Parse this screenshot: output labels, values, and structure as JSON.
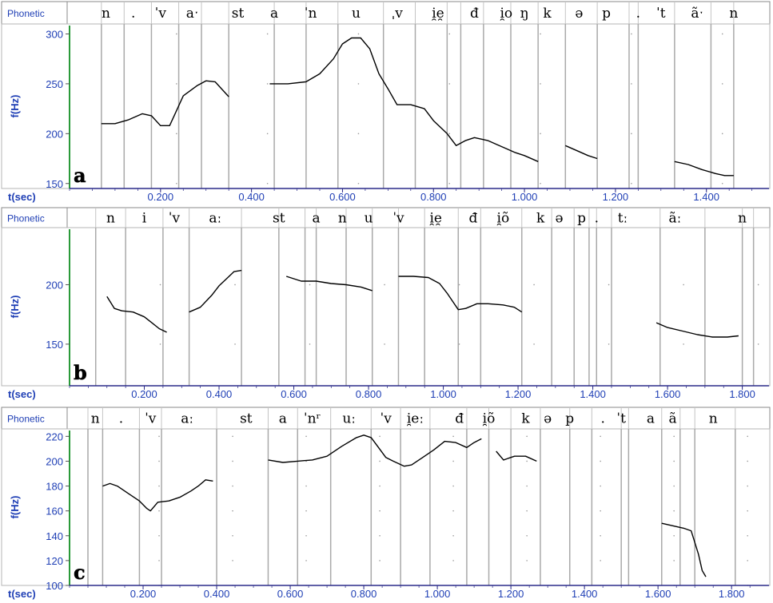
{
  "row_label": "Phonetic",
  "y_axis_label": "f(Hz)",
  "x_axis_label": "t(sec)",
  "colors": {
    "label_blue": "#1f3fb5",
    "axis_green": "#2a9a3a",
    "boundary_gray": "#a9a9a9",
    "curve": "#000000",
    "header_bg": "#ffffff"
  },
  "chart_data": [
    {
      "type": "line",
      "panel_letter": "a",
      "ylim": [
        145,
        310
      ],
      "yticks": [
        150,
        200,
        250,
        300
      ],
      "xlim": [
        0.0,
        1.52
      ],
      "xticks": [
        0.2,
        0.4,
        0.6,
        0.8,
        1.0,
        1.2,
        1.4
      ],
      "xtick_labels": [
        "0.200",
        "0.400",
        "0.600",
        "0.800",
        "1.000",
        "1.200",
        "1.400"
      ],
      "boundaries": [
        0.07,
        0.12,
        0.18,
        0.24,
        0.29,
        0.35,
        0.45,
        0.52,
        0.59,
        0.69,
        0.76,
        0.83,
        0.86,
        0.91,
        0.97,
        1.03,
        1.09,
        1.16,
        1.23,
        1.25,
        1.33,
        1.41,
        1.46
      ],
      "phones": [
        {
          "t": 0.08,
          "label": "n"
        },
        {
          "t": 0.14,
          "label": "."
        },
        {
          "t": 0.2,
          "label": "ˈv"
        },
        {
          "t": 0.27,
          "label": "aˑ"
        },
        {
          "t": 0.37,
          "label": "st"
        },
        {
          "t": 0.45,
          "label": "a"
        },
        {
          "t": 0.53,
          "label": "ˈn"
        },
        {
          "t": 0.63,
          "label": "u"
        },
        {
          "t": 0.72,
          "label": "ˌv"
        },
        {
          "t": 0.81,
          "label": "i̯e̯"
        },
        {
          "t": 0.89,
          "label": "đ"
        },
        {
          "t": 0.96,
          "label": "i̯o"
        },
        {
          "t": 1.0,
          "label": "ŋ"
        },
        {
          "t": 1.05,
          "label": "k"
        },
        {
          "t": 1.12,
          "label": "ə"
        },
        {
          "t": 1.18,
          "label": "p"
        },
        {
          "t": 1.25,
          "label": "."
        },
        {
          "t": 1.3,
          "label": "ˈt"
        },
        {
          "t": 1.38,
          "label": "ãˑ"
        },
        {
          "t": 1.46,
          "label": "n"
        }
      ],
      "series": [
        {
          "x": [
            0.07,
            0.1,
            0.13,
            0.16,
            0.18,
            0.2,
            0.22,
            0.23,
            0.25,
            0.28,
            0.3,
            0.32,
            0.35
          ],
          "y": [
            210,
            210,
            214,
            220,
            218,
            208,
            208,
            218,
            238,
            248,
            253,
            252,
            237
          ]
        },
        {
          "x": [
            0.44,
            0.48,
            0.52,
            0.55,
            0.58,
            0.6,
            0.62,
            0.64,
            0.66,
            0.68,
            0.7,
            0.72,
            0.75,
            0.78,
            0.8,
            0.83,
            0.85,
            0.87,
            0.89,
            0.92,
            0.95,
            0.98,
            1.0,
            1.03
          ],
          "y": [
            250,
            250,
            252,
            260,
            275,
            290,
            296,
            296,
            285,
            260,
            245,
            229,
            229,
            225,
            213,
            200,
            188,
            193,
            196,
            193,
            187,
            181,
            178,
            172
          ]
        },
        {
          "x": [
            1.09,
            1.12,
            1.14,
            1.16
          ],
          "y": [
            188,
            182,
            178,
            175
          ]
        },
        {
          "x": [
            1.33,
            1.36,
            1.39,
            1.42,
            1.44,
            1.46
          ],
          "y": [
            172,
            169,
            164,
            160,
            158,
            158
          ]
        }
      ]
    },
    {
      "type": "line",
      "panel_letter": "b",
      "ylim": [
        115,
        248
      ],
      "yticks": [
        150,
        200
      ],
      "xlim": [
        0.0,
        1.85
      ],
      "xticks": [
        0.2,
        0.4,
        0.6,
        0.8,
        1.0,
        1.2,
        1.4,
        1.6,
        1.8
      ],
      "xtick_labels": [
        "0.200",
        "0.400",
        "0.600",
        "0.800",
        "1.000",
        "1.200",
        "1.400",
        "1.600",
        "1.800"
      ],
      "boundaries": [
        0.07,
        0.15,
        0.25,
        0.32,
        0.46,
        0.56,
        0.63,
        0.66,
        0.74,
        0.81,
        0.88,
        0.95,
        1.04,
        1.1,
        1.21,
        1.29,
        1.35,
        1.39,
        1.41,
        1.45,
        1.58,
        1.7,
        1.8,
        1.83
      ],
      "phones": [
        {
          "t": 0.11,
          "label": "n"
        },
        {
          "t": 0.2,
          "label": "i"
        },
        {
          "t": 0.28,
          "label": "ˈv"
        },
        {
          "t": 0.39,
          "label": "aː"
        },
        {
          "t": 0.56,
          "label": "st"
        },
        {
          "t": 0.66,
          "label": "a"
        },
        {
          "t": 0.73,
          "label": "n"
        },
        {
          "t": 0.8,
          "label": "u"
        },
        {
          "t": 0.88,
          "label": "ˈv"
        },
        {
          "t": 0.98,
          "label": "i̯e̯"
        },
        {
          "t": 1.08,
          "label": "đ"
        },
        {
          "t": 1.16,
          "label": "i̯õ"
        },
        {
          "t": 1.26,
          "label": "k"
        },
        {
          "t": 1.31,
          "label": "ə"
        },
        {
          "t": 1.37,
          "label": "p"
        },
        {
          "t": 1.41,
          "label": "."
        },
        {
          "t": 1.48,
          "label": "tː"
        },
        {
          "t": 1.62,
          "label": "ãː"
        },
        {
          "t": 1.8,
          "label": "n"
        }
      ],
      "series": [
        {
          "x": [
            0.1,
            0.12,
            0.14,
            0.17,
            0.2,
            0.22,
            0.24,
            0.26
          ],
          "y": [
            190,
            180,
            178,
            177,
            173,
            168,
            163,
            160
          ]
        },
        {
          "x": [
            0.32,
            0.35,
            0.38,
            0.4,
            0.42,
            0.44,
            0.46
          ],
          "y": [
            177,
            181,
            191,
            199,
            205,
            211,
            212
          ]
        },
        {
          "x": [
            0.58,
            0.62,
            0.66,
            0.7,
            0.74,
            0.78,
            0.81
          ],
          "y": [
            207,
            203,
            203,
            201,
            200,
            198,
            195
          ]
        },
        {
          "x": [
            0.88,
            0.92,
            0.96,
            0.99,
            1.01,
            1.04,
            1.06,
            1.09,
            1.12,
            1.16,
            1.19,
            1.21
          ],
          "y": [
            207,
            207,
            206,
            201,
            193,
            179,
            180,
            184,
            184,
            183,
            181,
            177
          ]
        },
        {
          "x": [
            1.57,
            1.6,
            1.64,
            1.68,
            1.72,
            1.76,
            1.79
          ],
          "y": [
            168,
            164,
            161,
            158,
            156,
            156,
            157
          ]
        }
      ]
    },
    {
      "type": "line",
      "panel_letter": "c",
      "ylim": [
        100,
        226
      ],
      "yticks": [
        100,
        120,
        140,
        160,
        180,
        200,
        220
      ],
      "xlim": [
        0.0,
        1.88
      ],
      "xticks": [
        0.2,
        0.4,
        0.6,
        0.8,
        1.0,
        1.2,
        1.4,
        1.6,
        1.8
      ],
      "xtick_labels": [
        "0.200",
        "0.400",
        "0.600",
        "0.800",
        "1.000",
        "1.200",
        "1.400",
        "1.600",
        "1.800"
      ],
      "boundaries": [
        0.05,
        0.09,
        0.19,
        0.25,
        0.4,
        0.54,
        0.62,
        0.71,
        0.82,
        0.9,
        0.98,
        1.08,
        1.14,
        1.2,
        1.28,
        1.36,
        1.42,
        1.5,
        1.52,
        1.61,
        1.66,
        1.7,
        1.81
      ],
      "phones": [
        {
          "t": 0.07,
          "label": "n"
        },
        {
          "t": 0.14,
          "label": "."
        },
        {
          "t": 0.22,
          "label": "ˈv"
        },
        {
          "t": 0.32,
          "label": "aː"
        },
        {
          "t": 0.48,
          "label": "st"
        },
        {
          "t": 0.58,
          "label": "a"
        },
        {
          "t": 0.66,
          "label": "ˈnʳ"
        },
        {
          "t": 0.76,
          "label": "uː"
        },
        {
          "t": 0.86,
          "label": "ˈv"
        },
        {
          "t": 0.94,
          "label": "i̯eː"
        },
        {
          "t": 1.06,
          "label": "đ"
        },
        {
          "t": 1.14,
          "label": "i̯õ"
        },
        {
          "t": 1.24,
          "label": "k"
        },
        {
          "t": 1.3,
          "label": "ə"
        },
        {
          "t": 1.36,
          "label": "p"
        },
        {
          "t": 1.45,
          "label": "."
        },
        {
          "t": 1.5,
          "label": "ˈt"
        },
        {
          "t": 1.58,
          "label": "a"
        },
        {
          "t": 1.64,
          "label": "ã"
        },
        {
          "t": 1.75,
          "label": "n"
        }
      ],
      "series": [
        {
          "x": [
            0.09,
            0.11,
            0.13,
            0.16,
            0.19,
            0.21,
            0.22,
            0.24,
            0.27,
            0.3,
            0.33,
            0.35,
            0.37,
            0.39
          ],
          "y": [
            180,
            182,
            180,
            174,
            168,
            162,
            160,
            167,
            168,
            171,
            176,
            180,
            185,
            184
          ]
        },
        {
          "x": [
            0.54,
            0.58,
            0.62,
            0.66,
            0.7,
            0.74,
            0.78,
            0.8,
            0.82,
            0.84,
            0.86,
            0.88,
            0.91,
            0.93,
            0.96,
            0.99,
            1.02,
            1.05,
            1.08,
            1.1,
            1.12
          ],
          "y": [
            201,
            199,
            200,
            201,
            204,
            212,
            219,
            221,
            219,
            211,
            203,
            200,
            196,
            197,
            203,
            209,
            216,
            215,
            211,
            215,
            218
          ]
        },
        {
          "x": [
            1.16,
            1.18,
            1.21,
            1.24,
            1.27
          ],
          "y": [
            208,
            201,
            204,
            204,
            200
          ]
        },
        {
          "x": [
            1.61,
            1.64,
            1.67,
            1.69,
            1.71,
            1.72,
            1.73
          ],
          "y": [
            150,
            148,
            146,
            144,
            125,
            112,
            107
          ]
        }
      ]
    }
  ]
}
